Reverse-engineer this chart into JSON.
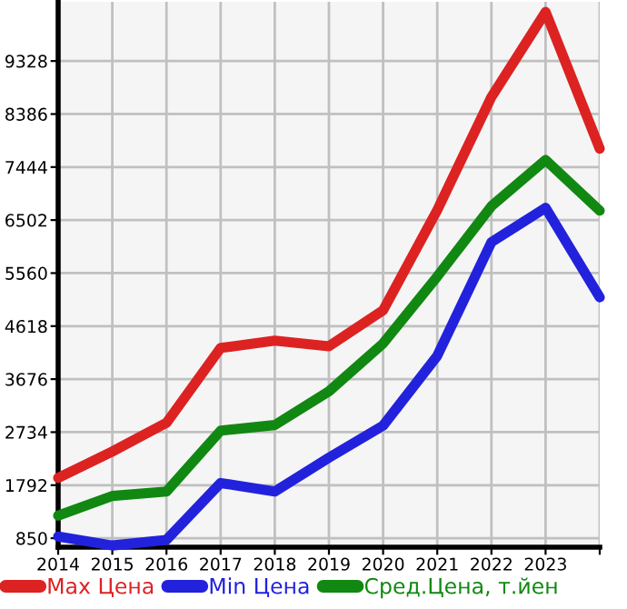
{
  "chart_data": {
    "type": "line",
    "x": [
      2014,
      2015,
      2016,
      2017,
      2018,
      2019,
      2020,
      2021,
      2022,
      2023,
      2024
    ],
    "series": [
      {
        "name": "Max Цена",
        "color": "#dd2222",
        "values": [
          1920,
          2390,
          2900,
          4230,
          4360,
          4260,
          4900,
          6680,
          8690,
          10200,
          7770
        ]
      },
      {
        "name": "Min Цена",
        "color": "#2222dd",
        "values": [
          880,
          720,
          820,
          1830,
          1680,
          2280,
          2850,
          4090,
          6110,
          6720,
          5130
        ]
      },
      {
        "name": "Сред.Цена, т.йен",
        "color": "#118811",
        "values": [
          1250,
          1600,
          1680,
          2760,
          2860,
          3460,
          4310,
          5500,
          6750,
          7570,
          6670
        ]
      }
    ],
    "xlim": [
      2014,
      2024
    ],
    "xticks": [
      2014,
      2015,
      2016,
      2017,
      2018,
      2019,
      2020,
      2021,
      2022,
      2023,
      {
        "value": 2024,
        "label": null
      }
    ],
    "ylim": [
      690,
      10380
    ],
    "yticks": [
      850,
      1792,
      2734,
      3676,
      4618,
      5560,
      6502,
      7444,
      8386,
      9328
    ],
    "grid": true,
    "legend": "bottom",
    "marker": "none",
    "line_style": "solid"
  }
}
